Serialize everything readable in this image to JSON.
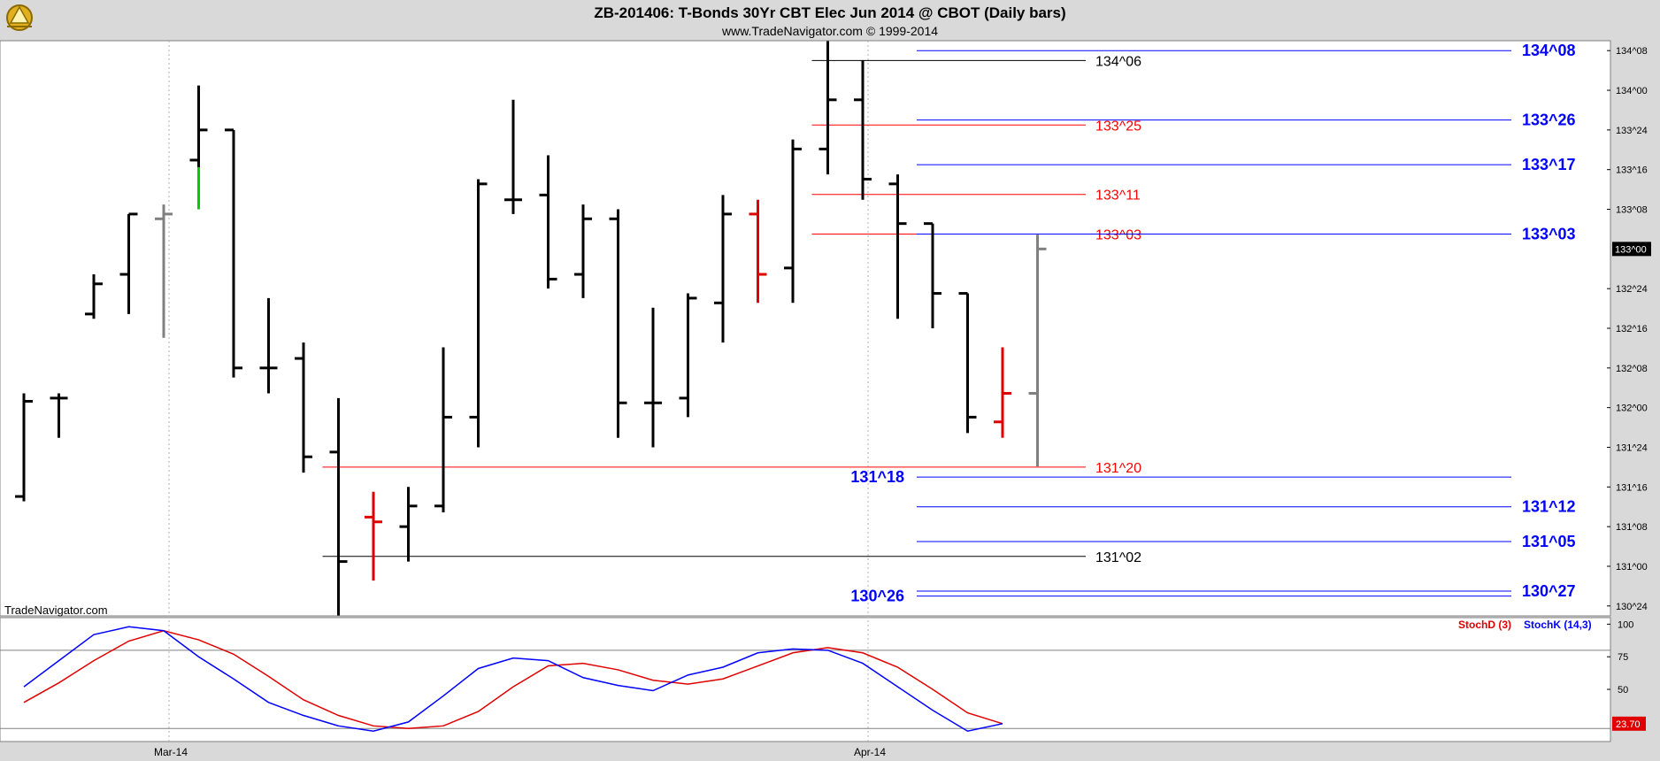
{
  "window": {
    "title": "ZB-201406:  T-Bonds 30Yr CBT Elec Jun 2014 @ CBOT  (Daily bars)",
    "subtitle": "www.TradeNavigator.com © 1999-2014",
    "watermark": "TradeNavigator.com",
    "logo": "trade-navigator-logo-icon"
  },
  "colors": {
    "background": "#ffffff",
    "frame": "#d9d9d9",
    "bar_default": "#000000",
    "bar_red": "#e00000",
    "bar_gray": "#808080",
    "bar_green": "#00cc00",
    "level_blue": "#0000ff",
    "level_red": "#ff0000",
    "level_black": "#000000",
    "stoch_d": "#ff0000",
    "stoch_k": "#0000ff"
  },
  "chart_data": [
    {
      "type": "ohlc",
      "title": "ZB-201406:  T-Bonds 30Yr CBT Elec Jun 2014 @ CBOT  (Daily bars)",
      "price_unit": "32nds",
      "ylim": [
        130.6875,
        134.3125
      ],
      "y_ticks": [
        {
          "label": "134^08",
          "value": 134.25
        },
        {
          "label": "134^00",
          "value": 134.0
        },
        {
          "label": "133^24",
          "value": 133.75
        },
        {
          "label": "133^16",
          "value": 133.5
        },
        {
          "label": "133^08",
          "value": 133.25
        },
        {
          "label": "132^24",
          "value": 132.75
        },
        {
          "label": "132^16",
          "value": 132.5
        },
        {
          "label": "132^08",
          "value": 132.25
        },
        {
          "label": "132^00",
          "value": 132.0
        },
        {
          "label": "131^24",
          "value": 131.75
        },
        {
          "label": "131^16",
          "value": 131.5
        },
        {
          "label": "131^08",
          "value": 131.25
        },
        {
          "label": "131^00",
          "value": 131.0
        },
        {
          "label": "130^24",
          "value": 130.75
        }
      ],
      "last_price": {
        "label": "133^00",
        "value": 133.0
      },
      "x_labels": [
        {
          "label": "Mar-14",
          "bar_index": 4
        },
        {
          "label": "Apr-14",
          "bar_index": 24
        }
      ],
      "grid": false,
      "bars": [
        {
          "o": 131.44,
          "h": 132.09,
          "l": 131.41,
          "c": 132.04,
          "color": "black"
        },
        {
          "o": 132.06,
          "h": 132.09,
          "l": 131.81,
          "c": 132.06,
          "color": "black"
        },
        {
          "o": 132.59,
          "h": 132.84,
          "l": 132.56,
          "c": 132.78,
          "color": "black"
        },
        {
          "o": 132.84,
          "h": 133.22,
          "l": 132.59,
          "c": 133.22,
          "color": "black"
        },
        {
          "o": 133.19,
          "h": 133.28,
          "l": 132.44,
          "c": 133.22,
          "color": "gray"
        },
        {
          "o": 133.56,
          "h": 134.03,
          "l": 133.25,
          "c": 133.75,
          "color": "black",
          "low_tail_color": "green"
        },
        {
          "o": 133.75,
          "h": 133.75,
          "l": 132.19,
          "c": 132.25,
          "color": "black"
        },
        {
          "o": 132.25,
          "h": 132.69,
          "l": 132.09,
          "c": 132.25,
          "color": "black"
        },
        {
          "o": 132.31,
          "h": 132.41,
          "l": 131.59,
          "c": 131.69,
          "color": "black"
        },
        {
          "o": 131.72,
          "h": 132.06,
          "l": 130.69,
          "c": 131.03,
          "color": "black"
        },
        {
          "o": 131.31,
          "h": 131.47,
          "l": 130.91,
          "c": 131.28,
          "color": "red"
        },
        {
          "o": 131.25,
          "h": 131.5,
          "l": 131.03,
          "c": 131.38,
          "color": "black"
        },
        {
          "o": 131.38,
          "h": 132.38,
          "l": 131.34,
          "c": 131.94,
          "color": "black"
        },
        {
          "o": 131.94,
          "h": 133.44,
          "l": 131.75,
          "c": 133.41,
          "color": "black"
        },
        {
          "o": 133.31,
          "h": 133.94,
          "l": 133.22,
          "c": 133.31,
          "color": "black"
        },
        {
          "o": 133.34,
          "h": 133.59,
          "l": 132.75,
          "c": 132.81,
          "color": "black"
        },
        {
          "o": 132.84,
          "h": 133.28,
          "l": 132.69,
          "c": 133.19,
          "color": "black"
        },
        {
          "o": 133.19,
          "h": 133.25,
          "l": 131.81,
          "c": 132.03,
          "color": "black"
        },
        {
          "o": 132.03,
          "h": 132.63,
          "l": 131.75,
          "c": 132.03,
          "color": "black"
        },
        {
          "o": 132.06,
          "h": 132.72,
          "l": 131.94,
          "c": 132.69,
          "color": "black"
        },
        {
          "o": 132.66,
          "h": 133.34,
          "l": 132.41,
          "c": 133.22,
          "color": "black"
        },
        {
          "o": 133.22,
          "h": 133.31,
          "l": 132.66,
          "c": 132.84,
          "color": "red"
        },
        {
          "o": 132.88,
          "h": 133.69,
          "l": 132.66,
          "c": 133.63,
          "color": "black"
        },
        {
          "o": 133.63,
          "h": 134.31,
          "l": 133.47,
          "c": 133.94,
          "color": "black"
        },
        {
          "o": 133.94,
          "h": 134.19,
          "l": 133.31,
          "c": 133.44,
          "color": "black"
        },
        {
          "o": 133.41,
          "h": 133.47,
          "l": 132.56,
          "c": 133.16,
          "color": "black"
        },
        {
          "o": 133.16,
          "h": 133.16,
          "l": 132.5,
          "c": 132.72,
          "color": "black"
        },
        {
          "o": 132.72,
          "h": 132.72,
          "l": 131.84,
          "c": 131.94,
          "color": "black"
        },
        {
          "o": 131.91,
          "h": 132.38,
          "l": 131.81,
          "c": 132.09,
          "color": "red"
        },
        {
          "o": 132.09,
          "h": 133.09,
          "l": 131.63,
          "c": 133.0,
          "color": "gray"
        }
      ],
      "levels": [
        {
          "label": "134^06",
          "value": 134.1875,
          "color": "black",
          "start": 23,
          "end": 29.5,
          "label_side": "right-mid"
        },
        {
          "label": "133^25",
          "value": 133.78125,
          "color": "red",
          "start": 23,
          "end": 29.5,
          "label_side": "right-mid"
        },
        {
          "label": "133^11",
          "value": 133.34375,
          "color": "red",
          "start": 23,
          "end": 29.5,
          "label_side": "right-mid"
        },
        {
          "label": "133^03",
          "value": 133.09375,
          "color": "red",
          "start": 23,
          "end": 29.5,
          "label_side": "right-mid"
        },
        {
          "label": "131^20",
          "value": 131.625,
          "color": "red",
          "start": 9,
          "end": 29.5,
          "label_side": "right-mid"
        },
        {
          "label": "131^02",
          "value": 131.0625,
          "color": "black",
          "start": 9,
          "end": 29.5,
          "label_side": "right-mid"
        },
        {
          "label": "134^08",
          "value": 134.25,
          "color": "blue",
          "start": 26,
          "end": 42.5,
          "label_side": "right-far"
        },
        {
          "label": "133^26",
          "value": 133.8125,
          "color": "blue",
          "start": 26,
          "end": 42.5,
          "label_side": "right-far"
        },
        {
          "label": "133^17",
          "value": 133.53125,
          "color": "blue",
          "start": 26,
          "end": 42.5,
          "label_side": "right-far"
        },
        {
          "label": "133^03",
          "value": 133.09375,
          "color": "blue",
          "start": 26,
          "end": 42.5,
          "label_side": "right-far"
        },
        {
          "label": "131^18",
          "value": 131.5625,
          "color": "blue",
          "start": 26,
          "end": 42.5,
          "label_side": "left"
        },
        {
          "label": "131^12",
          "value": 131.375,
          "color": "blue",
          "start": 26,
          "end": 42.5,
          "label_side": "right-far"
        },
        {
          "label": "131^05",
          "value": 131.15625,
          "color": "blue",
          "start": 26,
          "end": 42.5,
          "label_side": "right-far"
        },
        {
          "label": "130^27",
          "value": 130.84375,
          "color": "blue",
          "start": 26,
          "end": 42.5,
          "label_side": "right-far"
        },
        {
          "label": "130^26",
          "value": 130.8125,
          "color": "blue",
          "start": 26,
          "end": 42.5,
          "label_side": "left"
        }
      ]
    },
    {
      "type": "line",
      "legend": [
        {
          "name": "StochD (3)",
          "color": "red"
        },
        {
          "name": "StochK (14,3)",
          "color": "blue"
        }
      ],
      "ylim": [
        10,
        105
      ],
      "y_ticks": [
        {
          "label": "100",
          "value": 100
        },
        {
          "label": "75",
          "value": 75
        },
        {
          "label": "50",
          "value": 50
        }
      ],
      "reference_lines": [
        80,
        20
      ],
      "last_value": {
        "label": "23.70",
        "value": 23.7
      },
      "series": [
        {
          "name": "StochD (3)",
          "color": "red",
          "values": [
            40,
            55,
            72,
            87,
            95,
            88,
            77,
            60,
            42,
            30,
            22,
            20,
            22,
            33,
            52,
            68,
            70,
            65,
            57,
            54,
            58,
            68,
            78,
            82,
            78,
            67,
            50,
            32,
            23.7
          ]
        },
        {
          "name": "StochK (14,3)",
          "color": "blue",
          "values": [
            52,
            72,
            92,
            98,
            95,
            75,
            58,
            40,
            30,
            22,
            18,
            25,
            45,
            66,
            74,
            72,
            59,
            53,
            49,
            61,
            67,
            78,
            81,
            80,
            70,
            52,
            34,
            18,
            23.7
          ]
        }
      ]
    }
  ]
}
